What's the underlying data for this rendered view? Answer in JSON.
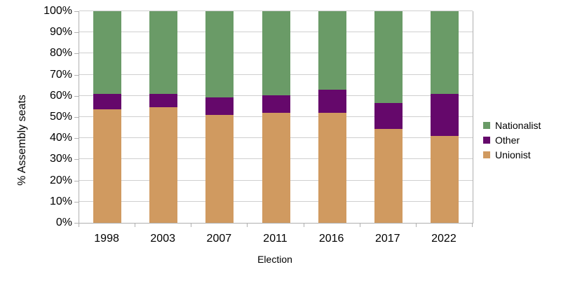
{
  "chart_data": {
    "type": "bar",
    "stacked": true,
    "orientation": "vertical",
    "title": "",
    "xlabel": "Election",
    "ylabel": "% Assembly seats",
    "categories": [
      "1998",
      "2003",
      "2007",
      "2011",
      "2016",
      "2017",
      "2022"
    ],
    "series": [
      {
        "name": "Unionist",
        "color": "#D09A60",
        "values": [
          53.7,
          54.6,
          50.9,
          51.9,
          51.9,
          44.4,
          41.1
        ]
      },
      {
        "name": "Other",
        "color": "#65086B",
        "values": [
          7.4,
          6.5,
          8.3,
          8.3,
          11.1,
          12.2,
          20.0
        ]
      },
      {
        "name": "Nationalist",
        "color": "#6A9B67",
        "values": [
          38.9,
          38.9,
          40.7,
          39.8,
          37.0,
          43.3,
          38.9
        ]
      }
    ],
    "legend_order": [
      "Nationalist",
      "Other",
      "Unionist"
    ],
    "legend_position": "right",
    "y_ticks": [
      "0%",
      "10%",
      "20%",
      "30%",
      "40%",
      "50%",
      "60%",
      "70%",
      "80%",
      "90%",
      "100%"
    ],
    "ylim": [
      0,
      100
    ],
    "grid": true
  },
  "colors": {
    "background": "#FFFFFF",
    "gridline": "#CFCFCF",
    "axis": "#B0B0B0",
    "text": "#000000"
  }
}
